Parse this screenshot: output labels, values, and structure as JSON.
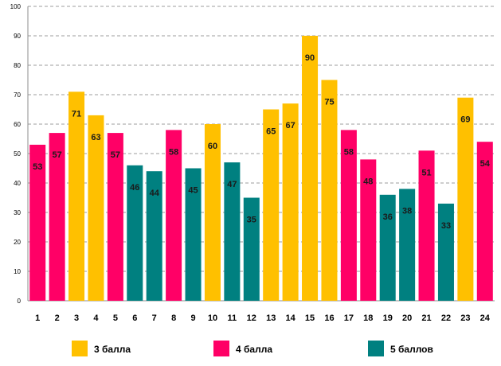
{
  "chart_data": {
    "type": "bar",
    "title": "",
    "xlabel": "",
    "ylabel": "",
    "ylim": [
      0,
      100
    ],
    "yticks": [
      0,
      10,
      20,
      30,
      40,
      50,
      60,
      70,
      80,
      90,
      100
    ],
    "grid": true,
    "categories": [
      "1",
      "2",
      "3",
      "4",
      "5",
      "6",
      "7",
      "8",
      "9",
      "10",
      "11",
      "12",
      "13",
      "14",
      "15",
      "16",
      "17",
      "18",
      "19",
      "20",
      "21",
      "22",
      "23",
      "24"
    ],
    "values": [
      53,
      57,
      71,
      63,
      57,
      46,
      44,
      58,
      45,
      60,
      47,
      35,
      65,
      67,
      90,
      75,
      58,
      48,
      36,
      38,
      51,
      33,
      69,
      54
    ],
    "groups": [
      "4 балла",
      "4 балла",
      "3 балла",
      "3 балла",
      "4 балла",
      "5 баллов",
      "5 баллов",
      "4 балла",
      "5 баллов",
      "3 балла",
      "5 баллов",
      "5 баллов",
      "3 балла",
      "3 балла",
      "3 балла",
      "3 балла",
      "4 балла",
      "4 балла",
      "5 баллов",
      "5 баллов",
      "4 балла",
      "5 баллов",
      "3 балла",
      "4 балла"
    ],
    "legend": [
      {
        "name": "3 балла",
        "color": "#FFC000"
      },
      {
        "name": "4 балла",
        "color": "#FF0066"
      },
      {
        "name": "5 баллов",
        "color": "#008080"
      }
    ],
    "legend_position": "bottom"
  }
}
